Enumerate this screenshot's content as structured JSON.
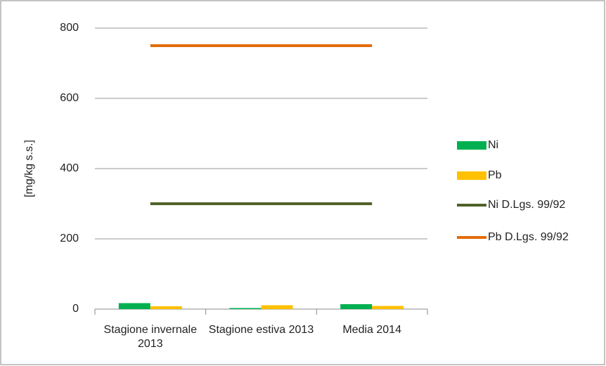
{
  "chart_data": {
    "type": "bar",
    "y_label": "[mg/kg s.s.]",
    "categories": [
      "Stagione invernale 2013",
      "Stagione estiva 2013",
      "Media 2014"
    ],
    "series": [
      {
        "name": "Ni",
        "type": "bar",
        "color": "#00b050",
        "values": [
          17,
          3,
          14
        ]
      },
      {
        "name": "Pb",
        "type": "bar",
        "color": "#ffc000",
        "values": [
          8,
          11,
          9
        ]
      },
      {
        "name": "Ni D.Lgs. 99/92",
        "type": "line",
        "color": "#4f6228",
        "values": [
          300,
          300,
          300
        ]
      },
      {
        "name": "Pb D.Lgs. 99/92",
        "type": "line",
        "color": "#e36c09",
        "values": [
          750,
          750,
          750
        ]
      }
    ],
    "ylim": [
      0,
      800
    ],
    "yticks": [
      0,
      200,
      400,
      600,
      800
    ],
    "grid": true,
    "legend": "right"
  }
}
